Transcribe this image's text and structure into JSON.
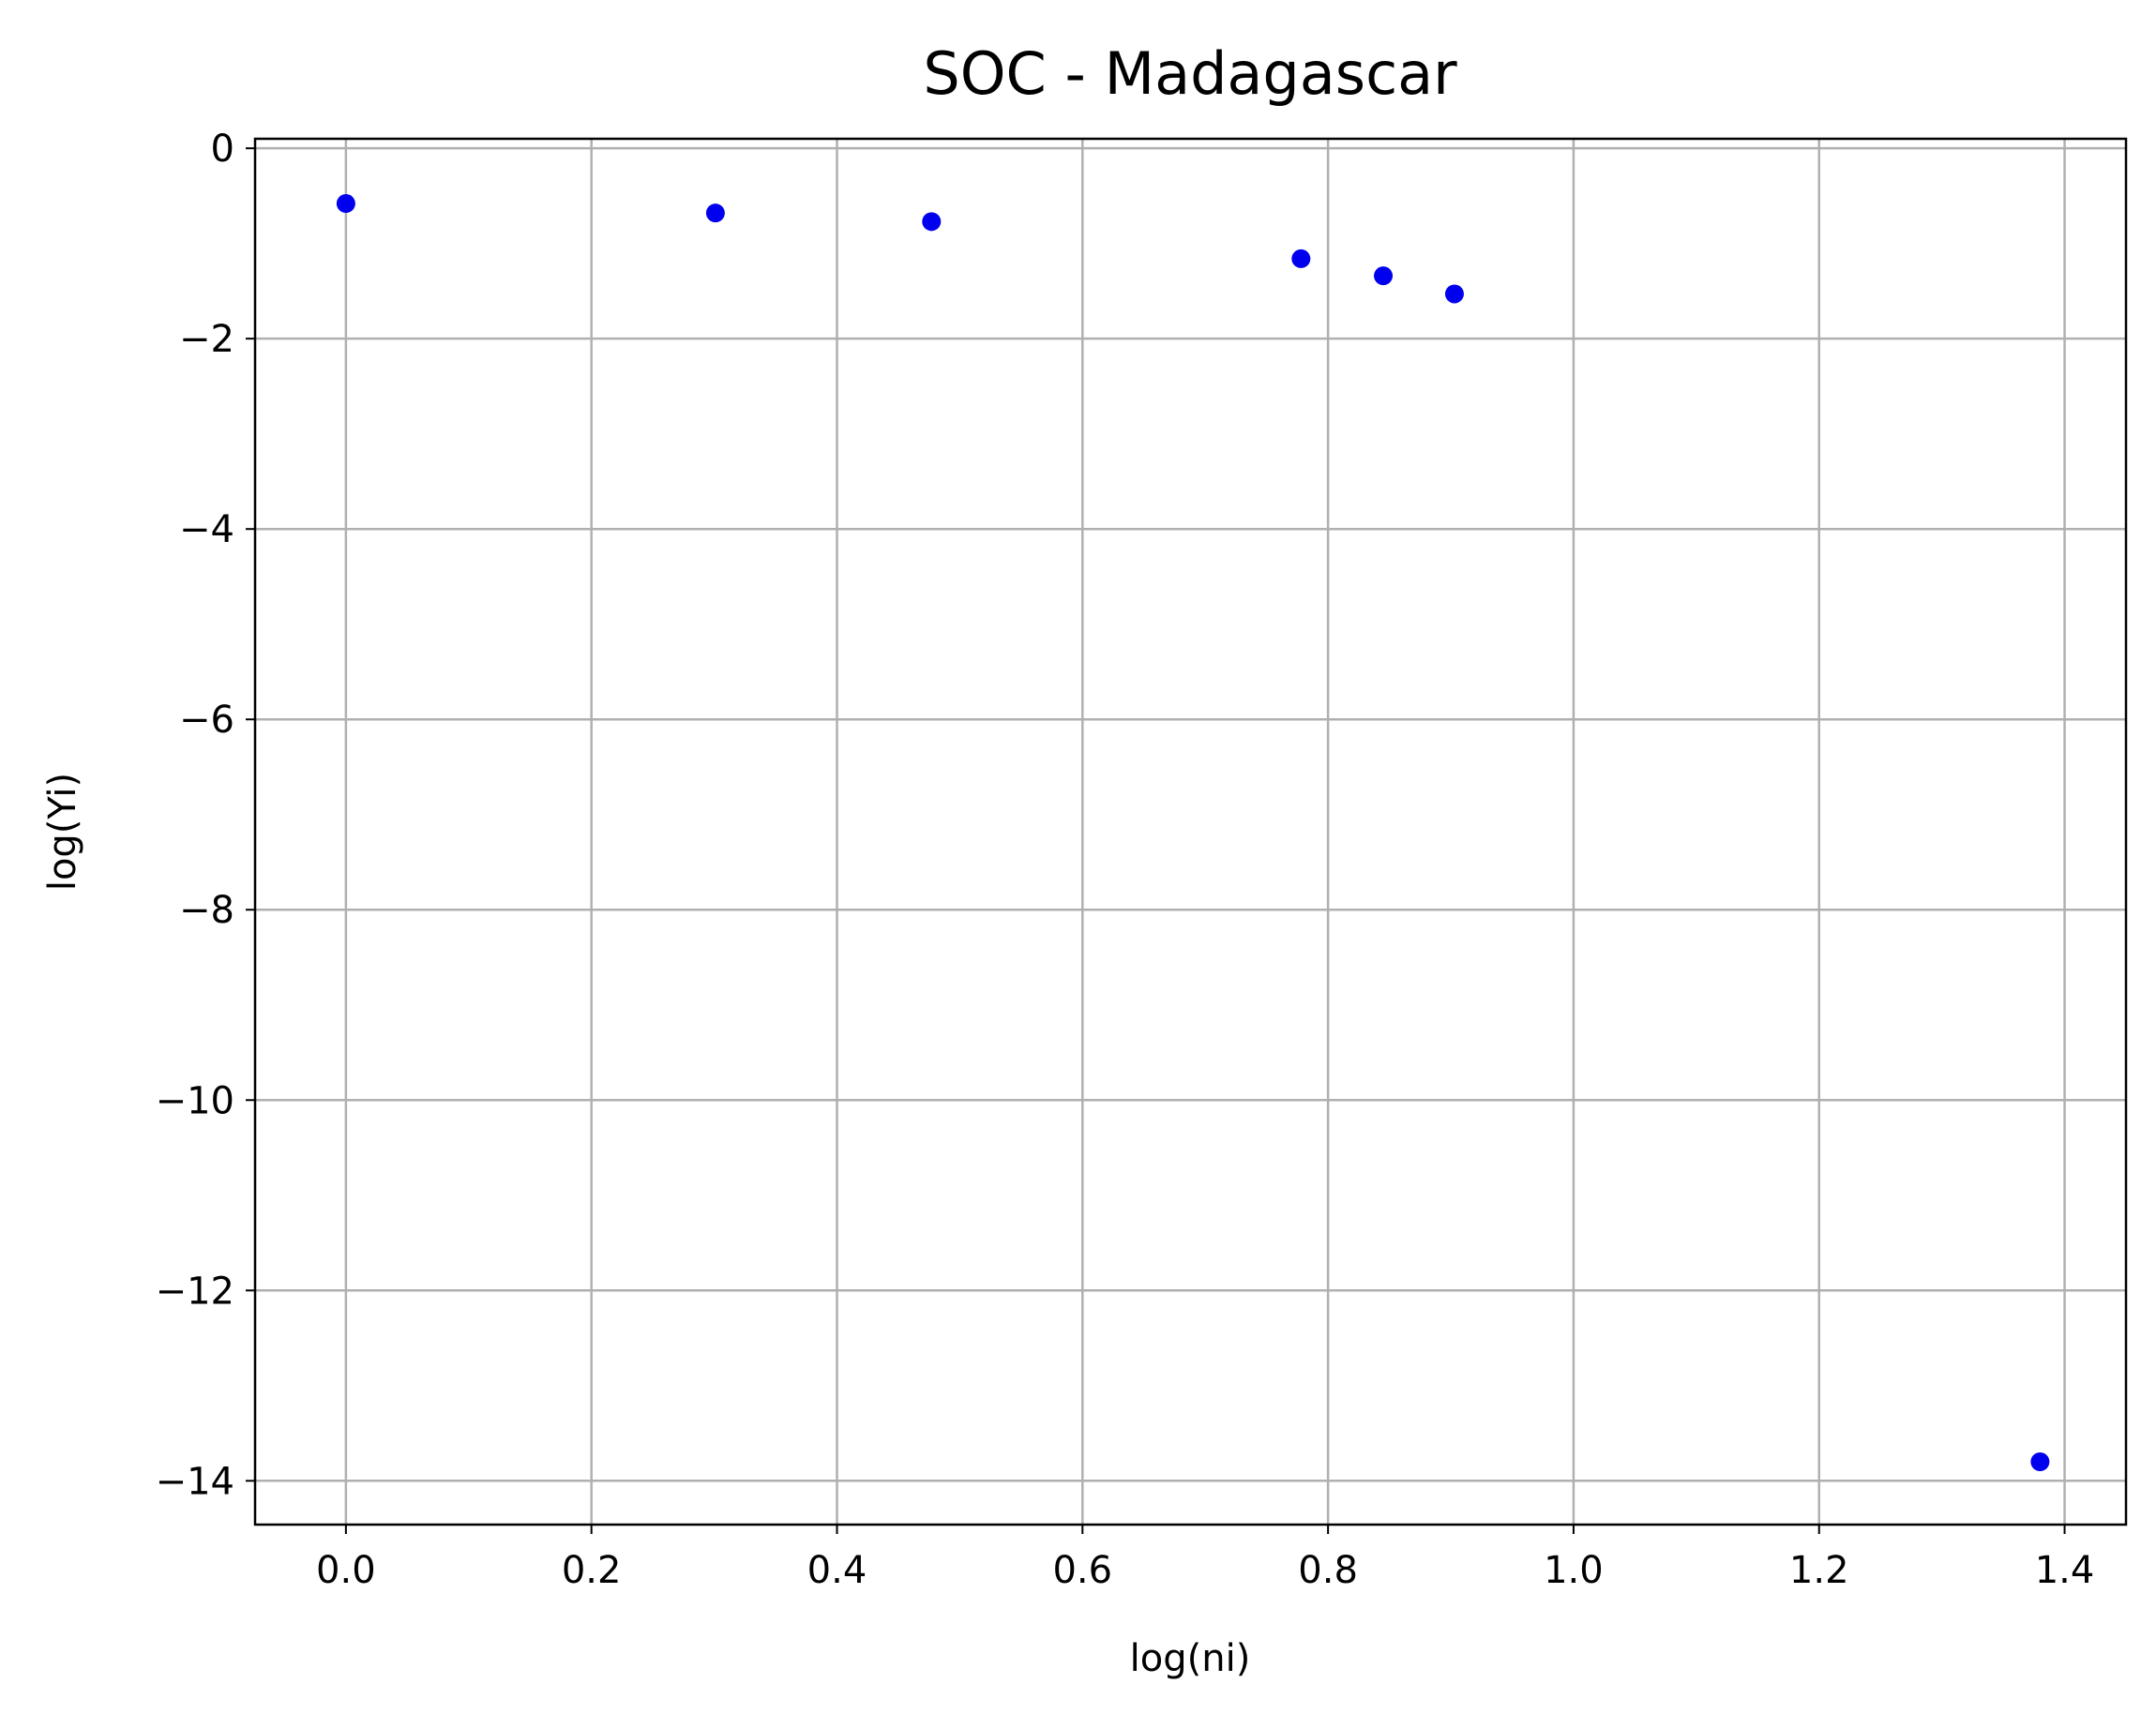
{
  "chart_data": {
    "type": "scatter",
    "title": "SOC - Madagascar",
    "xlabel": "log(ni)",
    "ylabel": "log(Yi)",
    "xlim": [
      -0.074,
      1.45
    ],
    "ylim": [
      -14.46,
      0.1
    ],
    "xticks": [
      0.0,
      0.2,
      0.4,
      0.6,
      0.8,
      1.0,
      1.2,
      1.4
    ],
    "xtick_labels": [
      "0.0",
      "0.2",
      "0.4",
      "0.6",
      "0.8",
      "1.0",
      "1.2",
      "1.4"
    ],
    "yticks": [
      0,
      -2,
      -4,
      -6,
      -8,
      -10,
      -12,
      -14
    ],
    "ytick_labels": [
      "0",
      "−2",
      "−4",
      "−6",
      "−8",
      "−10",
      "−12",
      "−14"
    ],
    "grid": true,
    "series": [
      {
        "color": "#0000ee",
        "points": [
          {
            "x": 0.0,
            "y": -0.58
          },
          {
            "x": 0.301,
            "y": -0.68
          },
          {
            "x": 0.477,
            "y": -0.77
          },
          {
            "x": 0.778,
            "y": -1.16
          },
          {
            "x": 0.845,
            "y": -1.34
          },
          {
            "x": 0.903,
            "y": -1.53
          },
          {
            "x": 1.38,
            "y": -13.8
          }
        ]
      }
    ]
  }
}
